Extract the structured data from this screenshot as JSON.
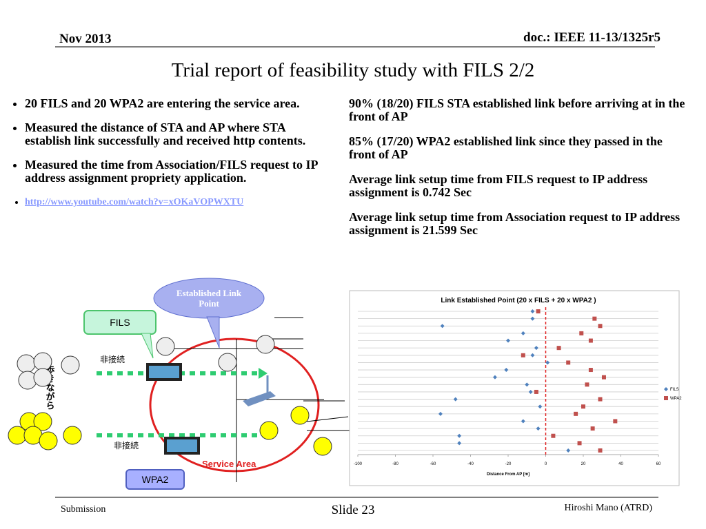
{
  "header": {
    "date": "Nov 2013",
    "doc": "doc.: IEEE 11-13/1325r5"
  },
  "title": "Trial report of feasibility study with FILS 2/2",
  "left_bullets": [
    "20 FILS and 20 WPA2 are entering the service area.",
    "Measured the distance of STA and AP where STA establish link successfully and received http contents.",
    "Measured the time from Association/FILS request to IP address assignment propriety application."
  ],
  "link": "http://www.youtube.com/watch?v=xOKaVOPWXTU",
  "right_paragraphs": [
    "90% (18/20) FILS STA established link before arriving at  in the front of AP",
    "85% (17/20) WPA2 established link since they passed in the front of AP",
    "Average link setup time from FILS request to IP address assignment is 0.742 Sec",
    "Average link setup time from Association request to IP address assignment is 21.599 Sec"
  ],
  "diagram": {
    "callout": "Established Link Point",
    "fils": "FILS",
    "wpa2": "WPA2",
    "disconnected": [
      "非接続",
      "非接続"
    ],
    "service_area": "Service Area",
    "walking": "歩きながら"
  },
  "chart_data": {
    "type": "scatter",
    "title": "Link Established Point (20 x FILS + 20 x  WPA2 )",
    "xlabel": "Distance From AP [m]",
    "categories": [
      null,
      null,
      null,
      null,
      null,
      null,
      null,
      null,
      null,
      null,
      null,
      null,
      null,
      null,
      null,
      null,
      null,
      null,
      null,
      null
    ],
    "xlim": [
      -100,
      60
    ],
    "xticks": [
      -100,
      -80,
      -60,
      -40,
      -20,
      0,
      20,
      40,
      60
    ],
    "grid": true,
    "legend": "right",
    "reference_x": 0,
    "series": [
      {
        "name": "FILS",
        "color": "#4f81bd",
        "values": [
          -7,
          -7,
          -55,
          -12,
          -20,
          -5,
          -7,
          1,
          -21,
          -27,
          -10,
          -8,
          -48,
          -3,
          -56,
          -12,
          -4,
          -46,
          -46,
          12
        ]
      },
      {
        "name": "WPA2",
        "color": "#c0504d",
        "values": [
          -4,
          26,
          29,
          19,
          24,
          7,
          -12,
          12,
          24,
          31,
          22,
          -5,
          29,
          20,
          16,
          37,
          25,
          4,
          18,
          29
        ]
      }
    ]
  },
  "footer": {
    "left": "Submission",
    "center": "Slide 23",
    "right": "Hiroshi Mano (ATRD)"
  }
}
